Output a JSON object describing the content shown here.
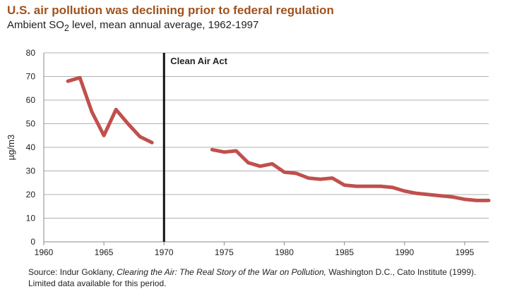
{
  "header": {
    "title": "U.S. air pollution was declining prior to federal regulation",
    "subtitle_prefix": "Ambient SO",
    "subtitle_sub": "2",
    "subtitle_suffix": " level, mean annual average, 1962-1997"
  },
  "source": {
    "prefix": "Source: Indur Goklany, ",
    "title": "Clearing the Air: The Real Story of the War on Pollution,",
    "suffix": " Washington D.C., Cato Institute (1999). Limited data available for this period."
  },
  "colors": {
    "series": "#c0504d",
    "event_line": "#111111",
    "grid": "#b0b0b0",
    "axis": "#888888"
  },
  "chart_data": {
    "type": "line",
    "ylabel": "µg/m3",
    "xlabel": "",
    "xlim": [
      1960,
      1997
    ],
    "ylim": [
      0,
      80
    ],
    "x_ticks": [
      1960,
      1965,
      1970,
      1975,
      1980,
      1985,
      1990,
      1995
    ],
    "y_ticks": [
      0,
      10,
      20,
      30,
      40,
      50,
      60,
      70,
      80
    ],
    "grid": "horizontal",
    "annotations": [
      {
        "x": 1970,
        "label": "Clean Air Act"
      }
    ],
    "series": [
      {
        "segments": [
          {
            "x": [
              1962,
              1963,
              1964,
              1965,
              1966,
              1967,
              1968,
              1969
            ],
            "y": [
              68,
              69.5,
              55,
              45,
              56,
              50,
              44.5,
              42
            ]
          },
          {
            "x": [
              1974,
              1975,
              1976,
              1977,
              1978,
              1979,
              1980,
              1981,
              1982,
              1983,
              1984,
              1985,
              1986,
              1987,
              1988,
              1989,
              1990,
              1991,
              1992,
              1993,
              1994,
              1995,
              1996,
              1997
            ],
            "y": [
              39,
              38,
              38.5,
              33.5,
              32,
              33,
              29.5,
              29,
              27,
              26.5,
              27,
              24,
              23.5,
              23.5,
              23.5,
              23,
              21.5,
              20.5,
              20,
              19.5,
              19,
              18,
              17.5,
              17.5
            ]
          }
        ]
      }
    ]
  }
}
